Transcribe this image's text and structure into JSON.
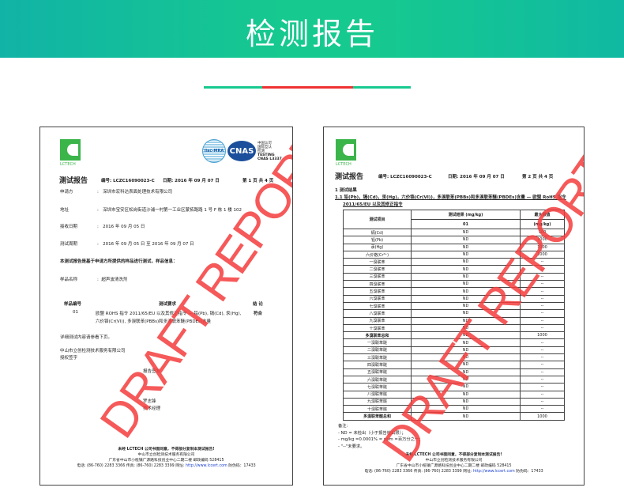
{
  "banner": {
    "title": "检测报告"
  },
  "colors": {
    "banner": "#16c98f",
    "divider_green": "#16c98f",
    "divider_red": "#ef3232",
    "watermark": "#f53c3c",
    "logo": "#3bb54a"
  },
  "watermark": "DRAFT REPORT",
  "logo": {
    "text": "LCTECH"
  },
  "accreditation": {
    "ilac": "ilac-MRA",
    "cnas": "CNAS",
    "lines": [
      "中国认可",
      "国际互认",
      "检测",
      "TESTING",
      "CNAS L3337"
    ]
  },
  "page1": {
    "title": "测试报告",
    "number": "编号: LCZC16090023-C",
    "date": "日期: 2016 年 09 月 07 日",
    "page": "第 1 页 共 4 页",
    "fields": [
      {
        "label": "申请方",
        "value": "深圳市宏科达表面处理技术有限公司"
      },
      {
        "label": "地址",
        "value": "深圳市宝安区松岗街道沙浦一村第一工业区蒙拓路路 1 号 F 栋 1 楼 102"
      },
      {
        "label": "接收日期",
        "value": "2016 年 09 月 05 日"
      },
      {
        "label": "测试周期",
        "value": "2016 年 09 月 05 日 至 2016 年 09 月 07 日"
      }
    ],
    "intro": "本测试报告是基于申请方所提供的样品进行测试，样品信息：",
    "sample_label": "样品名称",
    "sample_value": "超声波清洗剂",
    "col_sample": "样品编号",
    "col_req": "测试要求",
    "col_result": "结 论",
    "row_no": "01",
    "row_req1": "欧盟 ROHS 指令 2011/65/EU 以及其修正指令 — 铅(Pb), 镉(Cd), 汞(Hg),",
    "row_req2": "六价铬(Cr(VI)), 多溴联苯(PBBs)和多溴联苯醚(PBDEs)含量",
    "row_result": "符合",
    "detail": "详细测试内容请参看下页。",
    "company": "中山市立创检测技术服务有限公司",
    "auth": "授权签字",
    "issue": "报告签发",
    "signer": "罗志锋",
    "signer_title": "技术经理"
  },
  "footer": {
    "line1": "未经 LCTECH 公司书面同意，不得部分复制本测试报告!",
    "line2": "中山市立创检测技术服务有限公司",
    "line3": "广东省中山市小榄镇广源路科技创业中心二期二楼     邮政编码 528415",
    "line4a": "电话: (86-760) 2283 3366   传真: (86-760) 2283 3399      网址: ",
    "link": "http://www.lccert.com",
    "line4b": " 防伪码：17433"
  },
  "page2": {
    "title": "测试报告",
    "number": "编号: LCZC16090023-C",
    "date": "日期: 2016 年 09 月 07 日",
    "page": "第 2 页 共 4 页",
    "section": "1    测试结果",
    "subsection1": "1.1 铅(Pb)，镉(Cd)，汞(Hg)，六价铬(Cr(VI))，多溴联苯(PBBs)和多溴联苯醚(PBDEs)含量 — 欧盟 RoHS 指令",
    "subsection2": "2011/65/EU 以及其修正指令",
    "headers": {
      "item": "测试项目",
      "result": "测试结果 (mg/kg)",
      "sample": "01",
      "limit": "最大限值",
      "unit": "(mg/kg)"
    },
    "rows": [
      [
        "镉(Cd)",
        "ND",
        "100"
      ],
      [
        "铅(Pb)",
        "ND",
        "1000"
      ],
      [
        "汞(Hg)",
        "ND",
        "1000"
      ],
      [
        "六价铬(Cr⁶⁺)",
        "ND",
        "1000"
      ],
      [
        "一溴联苯",
        "ND",
        "--"
      ],
      [
        "二溴联苯",
        "ND",
        "--"
      ],
      [
        "三溴联苯",
        "ND",
        "--"
      ],
      [
        "四溴联苯",
        "ND",
        "--"
      ],
      [
        "五溴联苯",
        "ND",
        "--"
      ],
      [
        "六溴联苯",
        "ND",
        "--"
      ],
      [
        "七溴联苯",
        "ND",
        "--"
      ],
      [
        "八溴联苯",
        "ND",
        "--"
      ],
      [
        "九溴联苯",
        "ND",
        "--"
      ],
      [
        "十溴联苯",
        "ND",
        "--"
      ],
      [
        "多溴联苯总和",
        "ND",
        "1000"
      ],
      [
        "一溴联苯醚",
        "ND",
        "--"
      ],
      [
        "二溴联苯醚",
        "ND",
        "--"
      ],
      [
        "三溴联苯醚",
        "ND",
        "--"
      ],
      [
        "四溴联苯醚",
        "ND",
        "--"
      ],
      [
        "五溴联苯醚",
        "ND",
        "--"
      ],
      [
        "六溴联苯醚",
        "ND",
        "--"
      ],
      [
        "七溴联苯醚",
        "ND",
        "--"
      ],
      [
        "八溴联苯醚",
        "ND",
        "--"
      ],
      [
        "九溴联苯醚",
        "ND",
        "--"
      ],
      [
        "十溴联苯醚",
        "ND",
        "--"
      ],
      [
        "多溴联苯醚总和",
        "ND",
        "1000"
      ]
    ],
    "notes": [
      "备注:",
      "- ND = 未检出（小于报告检出限）；",
      "- mg/kg =0.0001% = ppm =百万分之一；",
      "- \"--\"未要求。"
    ]
  }
}
